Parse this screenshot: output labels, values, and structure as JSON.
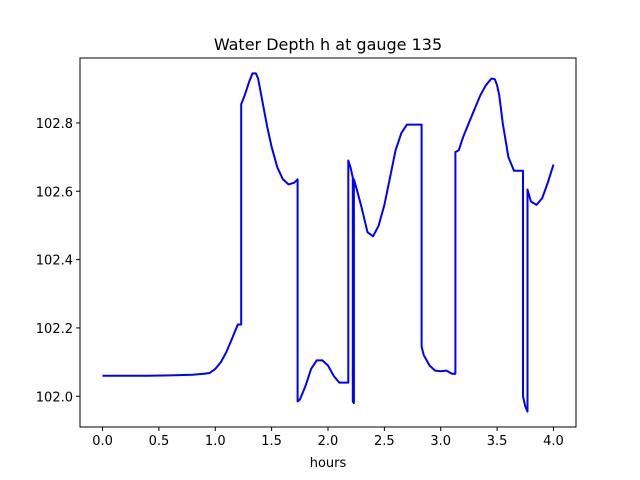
{
  "chart_data": {
    "type": "line",
    "title": "Water Depth h at gauge 135",
    "xlabel": "hours",
    "ylabel": "",
    "xlim": [
      -0.2,
      4.2
    ],
    "ylim": [
      101.91,
      102.99
    ],
    "xticks": [
      0.0,
      0.5,
      1.0,
      1.5,
      2.0,
      2.5,
      3.0,
      3.5,
      4.0
    ],
    "xtick_labels": [
      "0.0",
      "0.5",
      "1.0",
      "1.5",
      "2.0",
      "2.5",
      "3.0",
      "3.5",
      "4.0"
    ],
    "yticks": [
      102.0,
      102.2,
      102.4,
      102.6,
      102.8
    ],
    "ytick_labels": [
      "102.0",
      "102.2",
      "102.4",
      "102.6",
      "102.8"
    ],
    "grid": false,
    "series": [
      {
        "color": "#0000ff",
        "x": [
          0.0,
          0.2,
          0.4,
          0.6,
          0.8,
          0.9,
          0.95,
          1.0,
          1.05,
          1.1,
          1.15,
          1.2,
          1.23,
          1.23,
          1.26,
          1.3,
          1.33,
          1.36,
          1.38,
          1.42,
          1.46,
          1.5,
          1.55,
          1.6,
          1.65,
          1.7,
          1.73,
          1.73,
          1.75,
          1.8,
          1.85,
          1.9,
          1.95,
          2.0,
          2.05,
          2.1,
          2.15,
          2.18,
          2.18,
          2.2,
          2.22,
          2.22,
          2.23,
          2.23,
          2.26,
          2.3,
          2.35,
          2.4,
          2.45,
          2.5,
          2.55,
          2.6,
          2.65,
          2.7,
          2.75,
          2.8,
          2.83,
          2.83,
          2.85,
          2.9,
          2.95,
          3.0,
          3.05,
          3.1,
          3.13,
          3.13,
          3.16,
          3.2,
          3.25,
          3.3,
          3.35,
          3.4,
          3.45,
          3.48,
          3.5,
          3.52,
          3.55,
          3.6,
          3.65,
          3.7,
          3.73,
          3.73,
          3.75,
          3.77,
          3.77,
          3.8,
          3.85,
          3.9,
          3.95,
          4.0
        ],
        "y": [
          102.06,
          102.06,
          102.06,
          102.061,
          102.063,
          102.066,
          102.068,
          102.08,
          102.1,
          102.13,
          102.17,
          102.21,
          102.21,
          102.855,
          102.88,
          102.92,
          102.945,
          102.945,
          102.93,
          102.86,
          102.79,
          102.73,
          102.67,
          102.635,
          102.62,
          102.625,
          102.635,
          101.985,
          101.99,
          102.03,
          102.08,
          102.105,
          102.105,
          102.09,
          102.06,
          102.04,
          102.04,
          102.04,
          102.69,
          102.67,
          102.64,
          101.985,
          101.98,
          102.635,
          102.6,
          102.55,
          102.48,
          102.468,
          102.5,
          102.56,
          102.64,
          102.72,
          102.77,
          102.795,
          102.795,
          102.795,
          102.795,
          102.145,
          102.12,
          102.09,
          102.075,
          102.073,
          102.075,
          102.066,
          102.066,
          102.715,
          102.72,
          102.76,
          102.8,
          102.84,
          102.88,
          102.91,
          102.93,
          102.928,
          102.91,
          102.88,
          102.8,
          102.7,
          102.66,
          102.66,
          102.66,
          102.0,
          101.97,
          101.955,
          102.605,
          102.57,
          102.56,
          102.58,
          102.625,
          102.678
        ]
      }
    ]
  }
}
